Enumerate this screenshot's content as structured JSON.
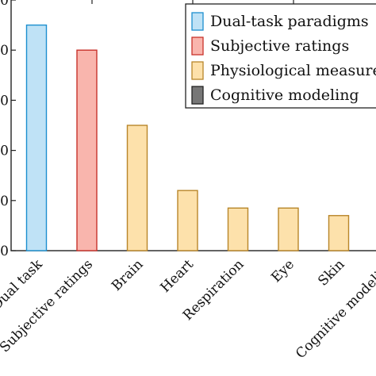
{
  "chart_data": {
    "type": "bar",
    "categories": [
      "Dual task",
      "Subjective ratings",
      "Brain",
      "Heart",
      "Respiration",
      "Eye",
      "Skin",
      "Cognitive modeling"
    ],
    "values": [
      45,
      40,
      25,
      12,
      8.5,
      8.5,
      7,
      0
    ],
    "bar_groups": [
      "Dual-task paradigms",
      "Subjective ratings",
      "Physiological measures",
      "Physiological measures",
      "Physiological measures",
      "Physiological measures",
      "Physiological measures",
      "Cognitive modeling"
    ],
    "y_tick_labels": [
      "0",
      "10",
      "20",
      "30",
      "40",
      "50"
    ],
    "ylim": [
      0,
      50
    ],
    "grid": false,
    "legend_position": "top-right",
    "legend": [
      {
        "label": "Dual-task paradigms",
        "fill": "#bfe2f6",
        "stroke": "#1c8fcf"
      },
      {
        "label": "Subjective ratings",
        "fill": "#f9b5ad",
        "stroke": "#c8322b"
      },
      {
        "label": "Physiological measures",
        "fill": "#fde1ab",
        "stroke": "#b8862a"
      },
      {
        "label": "Cognitive modeling",
        "fill": "#777777",
        "stroke": "#222222"
      }
    ]
  }
}
